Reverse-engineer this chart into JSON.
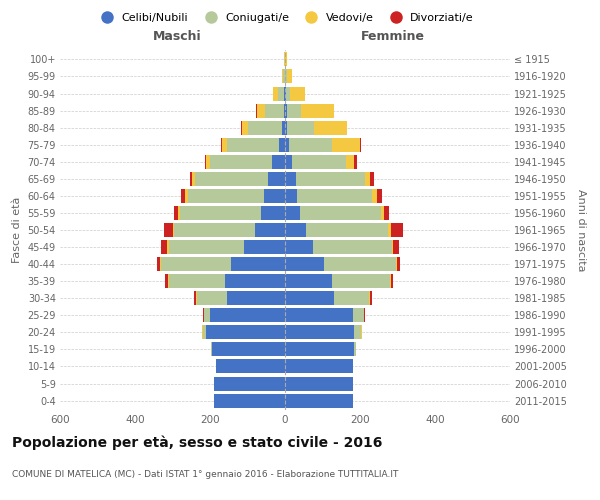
{
  "age_groups": [
    "0-4",
    "5-9",
    "10-14",
    "15-19",
    "20-24",
    "25-29",
    "30-34",
    "35-39",
    "40-44",
    "45-49",
    "50-54",
    "55-59",
    "60-64",
    "65-69",
    "70-74",
    "75-79",
    "80-84",
    "85-89",
    "90-94",
    "95-99",
    "100+"
  ],
  "birth_years": [
    "2011-2015",
    "2006-2010",
    "2001-2005",
    "1996-2000",
    "1991-1995",
    "1986-1990",
    "1981-1985",
    "1976-1980",
    "1971-1975",
    "1966-1970",
    "1961-1965",
    "1956-1960",
    "1951-1955",
    "1946-1950",
    "1941-1945",
    "1936-1940",
    "1931-1935",
    "1926-1930",
    "1921-1925",
    "1916-1920",
    "≤ 1915"
  ],
  "maschi": {
    "celibi": [
      190,
      190,
      185,
      195,
      210,
      200,
      155,
      160,
      145,
      110,
      80,
      65,
      55,
      45,
      35,
      15,
      8,
      4,
      2,
      1,
      0
    ],
    "coniugati": [
      0,
      0,
      0,
      3,
      10,
      15,
      80,
      150,
      185,
      200,
      215,
      215,
      205,
      195,
      165,
      140,
      90,
      50,
      18,
      4,
      1
    ],
    "vedovi": [
      0,
      0,
      0,
      0,
      1,
      1,
      2,
      2,
      3,
      4,
      5,
      5,
      7,
      7,
      10,
      12,
      18,
      22,
      12,
      4,
      2
    ],
    "divorziati": [
      0,
      0,
      0,
      0,
      1,
      2,
      5,
      8,
      8,
      18,
      22,
      10,
      10,
      7,
      4,
      3,
      2,
      1,
      0,
      0,
      0
    ]
  },
  "femmine": {
    "nubili": [
      180,
      180,
      180,
      185,
      185,
      180,
      130,
      125,
      105,
      75,
      55,
      40,
      32,
      28,
      18,
      10,
      6,
      4,
      2,
      1,
      0
    ],
    "coniugate": [
      0,
      0,
      0,
      4,
      18,
      30,
      95,
      155,
      190,
      210,
      220,
      215,
      200,
      185,
      145,
      115,
      70,
      38,
      12,
      3,
      1
    ],
    "vedove": [
      0,
      0,
      0,
      0,
      1,
      1,
      2,
      2,
      4,
      4,
      7,
      9,
      13,
      14,
      22,
      75,
      88,
      88,
      38,
      14,
      5
    ],
    "divorziate": [
      0,
      0,
      0,
      0,
      2,
      2,
      4,
      5,
      8,
      14,
      32,
      14,
      13,
      10,
      6,
      2,
      2,
      1,
      0,
      0,
      0
    ]
  },
  "colors": {
    "celibi": "#4472c4",
    "coniugati": "#b5c99a",
    "vedovi": "#f5c842",
    "divorziati": "#cc2222"
  },
  "xlim": 600,
  "title": "Popolazione per età, sesso e stato civile - 2016",
  "subtitle": "COMUNE DI MATELICA (MC) - Dati ISTAT 1° gennaio 2016 - Elaborazione TUTTITALIA.IT",
  "ylabel_left": "Fasce di età",
  "ylabel_right": "Anni di nascita",
  "legend_labels": [
    "Celibi/Nubili",
    "Coniugati/e",
    "Vedovi/e",
    "Divorziati/e"
  ],
  "maschi_label": "Maschi",
  "femmine_label": "Femmine"
}
